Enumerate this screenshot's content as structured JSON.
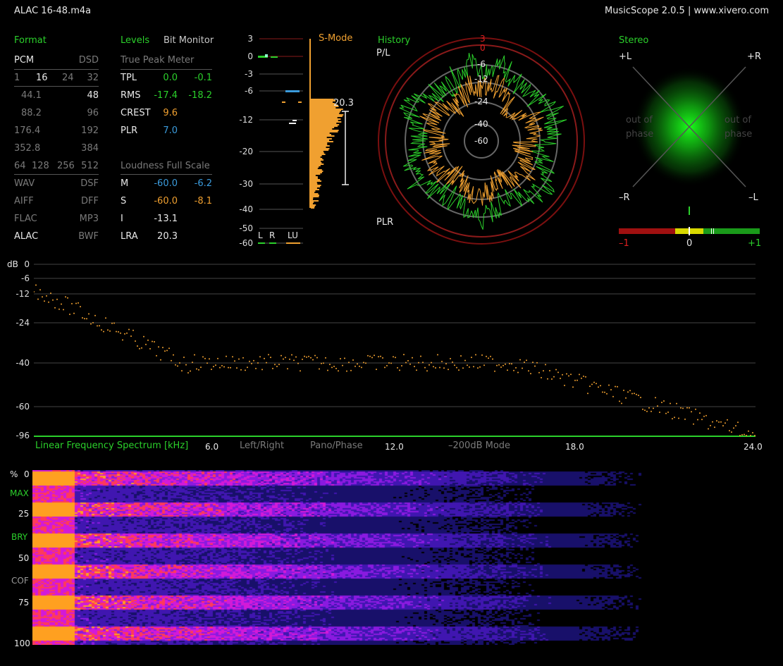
{
  "window": {
    "file_title": "ALAC 16-48.m4a",
    "app_title": "MusicScope 2.0.5 | www.xivero.com"
  },
  "format": {
    "header": "Format",
    "pcm": "PCM",
    "dsd": "DSD",
    "bit_depths": [
      "1",
      "16",
      "24",
      "32"
    ],
    "rates_left": [
      "44.1",
      "88.2",
      "176.4",
      "352.8"
    ],
    "rates_right": [
      "48",
      "96",
      "192",
      "384"
    ],
    "dsd_rates": [
      "64",
      "128",
      "256",
      "512"
    ],
    "containers_left": [
      "WAV",
      "AIFF",
      "FLAC",
      "ALAC"
    ],
    "containers_right": [
      "DSF",
      "DFF",
      "MP3",
      "BWF"
    ],
    "active": [
      "PCM",
      "16",
      "48",
      "ALAC"
    ]
  },
  "levels": {
    "header": "Levels",
    "bit_monitor": "Bit Monitor",
    "true_peak_title": "True Peak Meter",
    "tpl": {
      "label": "TPL",
      "left": "0.0",
      "right": "-0.1"
    },
    "rms": {
      "label": "RMS",
      "left": "-17.4",
      "right": "-18.2"
    },
    "crest": {
      "label": "CREST",
      "value": "9.6"
    },
    "plr": {
      "label": "PLR",
      "value": "7.0"
    },
    "loudness_title": "Loudness Full Scale",
    "m": {
      "label": "M",
      "left": "-60.0",
      "right": "-6.2"
    },
    "s": {
      "label": "S",
      "left": "-60.0",
      "right": "-8.1"
    },
    "i": {
      "label": "I",
      "value": "-13.1"
    },
    "lra": {
      "label": "LRA",
      "value": "20.3"
    }
  },
  "meter": {
    "ticks": [
      "3",
      "0",
      "-3",
      "-6",
      "-12",
      "-20",
      "-30",
      "-40",
      "-50",
      "-60"
    ],
    "smode": "S-Mode",
    "lra_value": "20.3",
    "ch_l": "L",
    "ch_r": "R",
    "ch_lu": "LU"
  },
  "history": {
    "header": "History",
    "pl_label": "P/L",
    "plr_label": "PLR",
    "rings": [
      "3",
      "0",
      "-6",
      "-12",
      "-24",
      "-40",
      "-60"
    ]
  },
  "stereo": {
    "header": "Stereo",
    "plus_l": "+L",
    "plus_r": "+R",
    "minus_r": "–R",
    "minus_l": "–L",
    "out_of": "out of",
    "phase": "phase",
    "correlation_labels": [
      "–1",
      "0",
      "+1"
    ]
  },
  "spectrum": {
    "y_unit": "dB",
    "y_ticks": [
      "0",
      "-6",
      "-12",
      "-24",
      "-40",
      "-60",
      "-96"
    ],
    "title": "Linear Frequency Spectrum [kHz]",
    "x_ticks": [
      "6.0",
      "12.0",
      "18.0",
      "24.0"
    ],
    "mode_left_right": "Left/Right",
    "mode_pano": "Pano/Phase",
    "mode_200db": "–200dB Mode"
  },
  "spectrogram": {
    "y_unit": "%",
    "ticks": [
      "0",
      "25",
      "50",
      "75",
      "100"
    ],
    "markers": [
      "MAX",
      "BRY",
      "COF"
    ]
  },
  "colors": {
    "accent_green": "#2bd02b",
    "accent_orange": "#f0a030",
    "accent_blue": "#3b9bdc",
    "accent_red": "#e02020"
  }
}
